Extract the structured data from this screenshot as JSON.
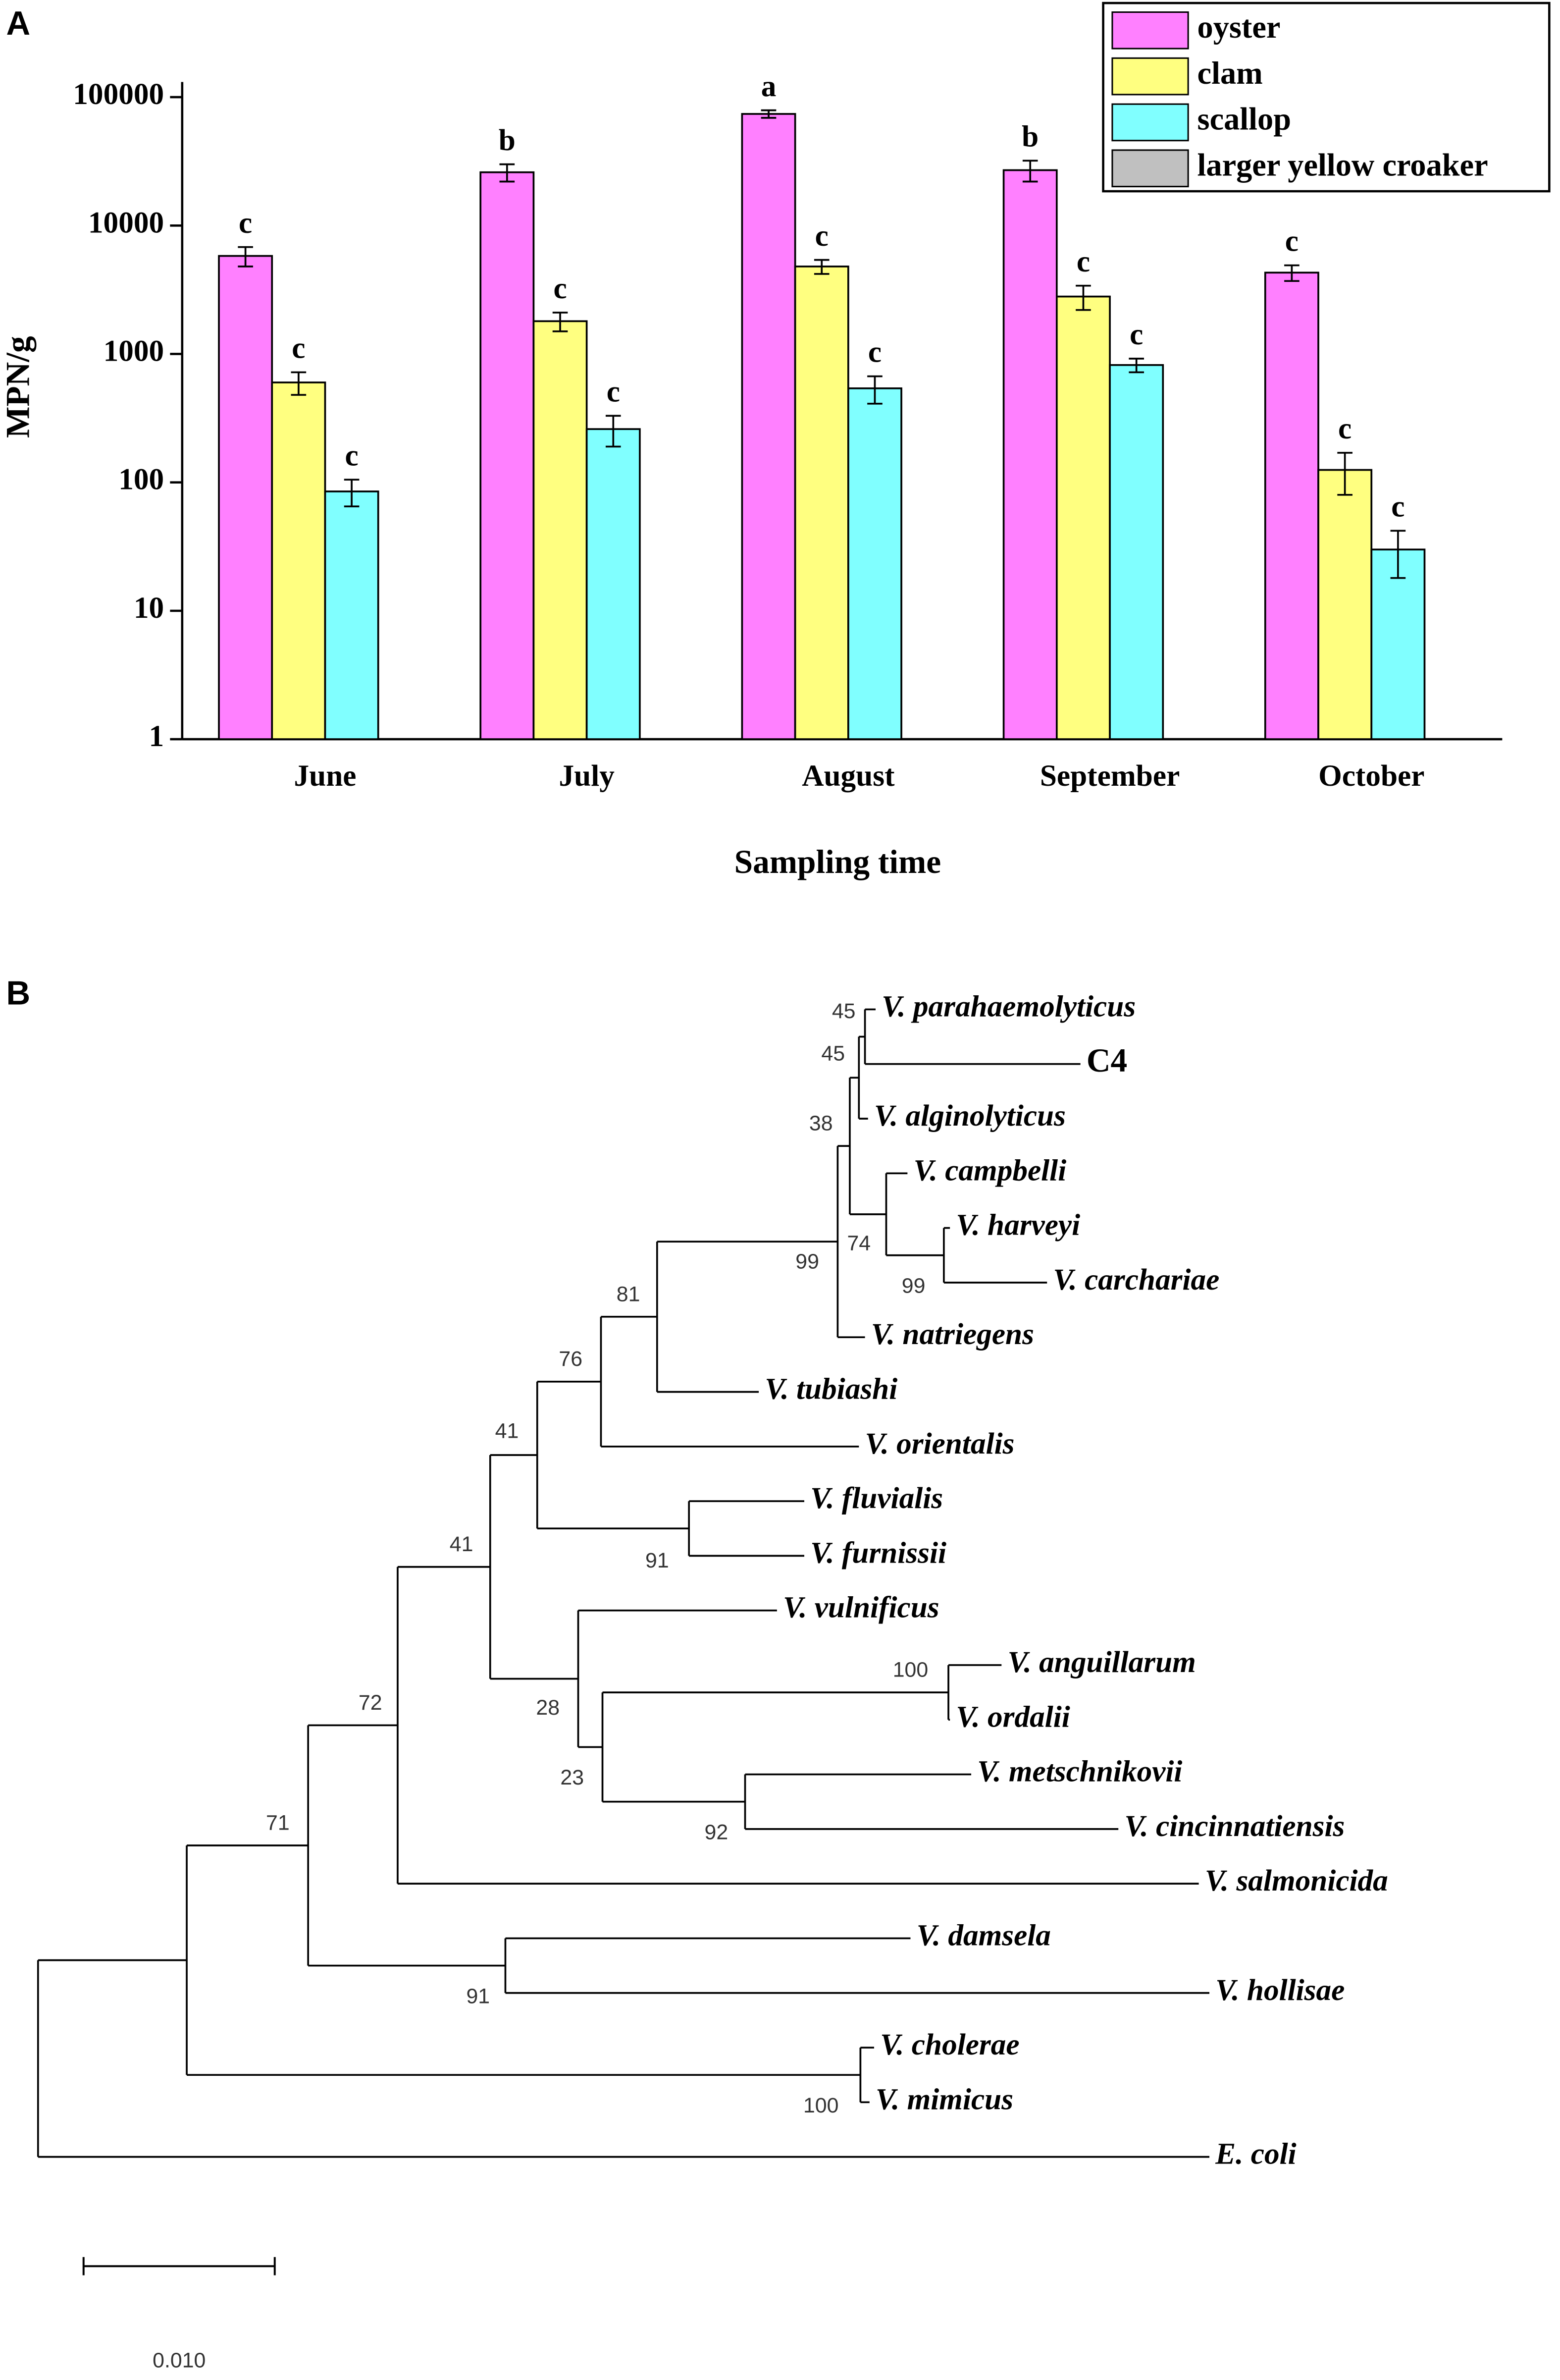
{
  "chart_data": {
    "type": "bar",
    "panel_label": "A",
    "ylabel": "MPN/g",
    "xlabel": "Sampling time",
    "log": true,
    "categories": [
      "June",
      "July",
      "August",
      "September",
      "October"
    ],
    "ylim": [
      1,
      100000
    ],
    "yticks": [
      1,
      10,
      100,
      1000,
      10000,
      100000
    ],
    "legend": "upper right",
    "series": [
      {
        "name": "oyster",
        "color": "#ff80ff",
        "values": [
          5800,
          26000,
          74000,
          27000,
          4300
        ],
        "errors": [
          1000,
          4000,
          5000,
          5000,
          600
        ],
        "significance": [
          "c",
          "b",
          "a",
          "b",
          "c"
        ]
      },
      {
        "name": "clam",
        "color": "#ffff80",
        "values": [
          600,
          1800,
          4800,
          2800,
          125
        ],
        "errors": [
          120,
          300,
          600,
          600,
          45
        ],
        "significance": [
          "c",
          "c",
          "c",
          "c",
          "c"
        ]
      },
      {
        "name": "scallop",
        "color": "#80ffff",
        "values": [
          85,
          260,
          540,
          820,
          30
        ],
        "errors": [
          20,
          70,
          130,
          100,
          12
        ],
        "significance": [
          "c",
          "c",
          "c",
          "c",
          "c"
        ]
      },
      {
        "name": "larger yellow croaker",
        "color": "#c0c0c0",
        "values": [
          null,
          null,
          null,
          null,
          null
        ]
      }
    ]
  },
  "tree": {
    "panel_label": "B",
    "leaves": [
      "V. parahaemolyticus",
      "C4",
      "V. alginolyticus",
      "V. campbelli",
      "V. harveyi",
      "V. carchariae",
      "V. natriegens",
      "V. tubiashi",
      "V. orientalis",
      "V. fluvialis",
      "V. furnissii",
      "V. vulnificus",
      "V. anguillarum",
      "V. ordalii",
      "V. metschnikovii",
      "V. cincinnatiensis",
      "V. salmonicida",
      "V. damsela",
      "V. hollisae",
      "V. cholerae",
      "V. mimicus",
      "E. coli"
    ],
    "bootstrap": [
      45,
      45,
      38,
      74,
      99,
      99,
      81,
      76,
      91,
      41,
      100,
      92,
      23,
      28,
      41,
      72,
      91,
      71,
      100
    ],
    "scale_bar": "0.010"
  }
}
